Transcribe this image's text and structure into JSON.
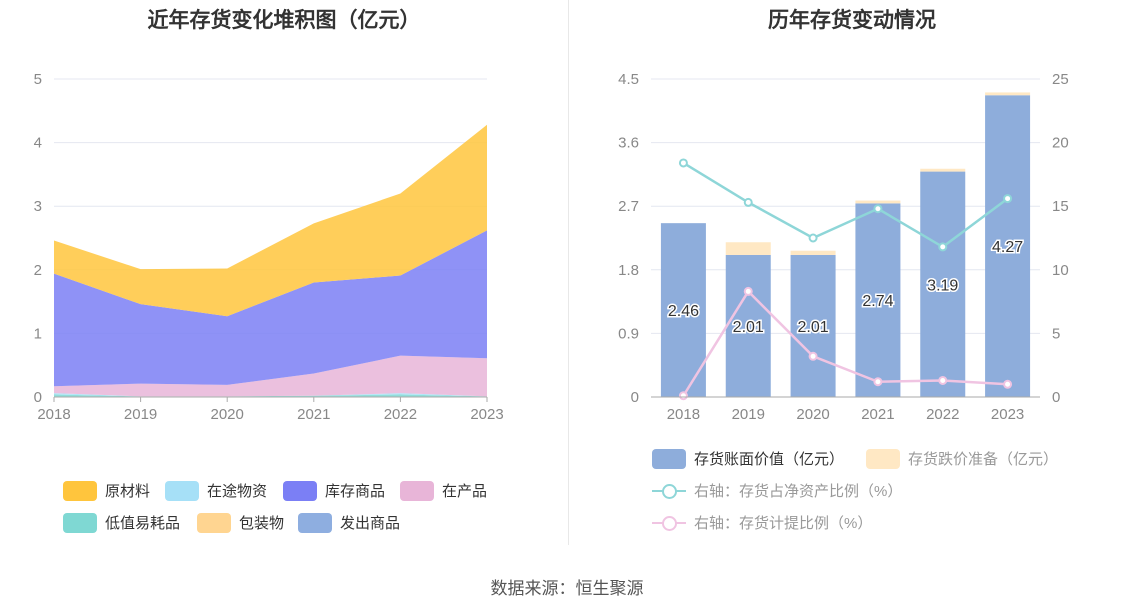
{
  "left": {
    "title": "近年存货变化堆积图（亿元）",
    "legend": [
      {
        "label": "原材料",
        "color": "#ffc53d"
      },
      {
        "label": "在途物资",
        "color": "#a6e0f7"
      },
      {
        "label": "库存商品",
        "color": "#7b7ff5"
      },
      {
        "label": "在产品",
        "color": "#e8b5d8"
      },
      {
        "label": "低值易耗品",
        "color": "#7fd8d3"
      },
      {
        "label": "包装物",
        "color": "#ffd591"
      },
      {
        "label": "发出商品",
        "color": "#8eaee0"
      }
    ]
  },
  "right": {
    "title": "历年存货变动情况",
    "legend": [
      {
        "label": "存货账面价值（亿元）",
        "color": "#8eaddb",
        "kind": "box",
        "muted": false
      },
      {
        "label": "存货跌价准备（亿元）",
        "color": "#ffe8c4",
        "kind": "box",
        "muted": true
      },
      {
        "label": "右轴：存货占净资产比例（%）",
        "color": "#8ed6d8",
        "kind": "line",
        "muted": true
      },
      {
        "label": "右轴：存货计提比例（%）",
        "color": "#f0c4e2",
        "kind": "line",
        "muted": true
      }
    ]
  },
  "source": "数据来源：恒生聚源",
  "chart_data": [
    {
      "type": "area",
      "stacked": true,
      "title": "近年存货变化堆积图（亿元）",
      "x": [
        "2018",
        "2019",
        "2020",
        "2021",
        "2022",
        "2023"
      ],
      "ylim": [
        0,
        5
      ],
      "yticks": [
        0,
        1,
        2,
        3,
        4,
        5
      ],
      "grid": true,
      "legend_position": "bottom",
      "series": [
        {
          "name": "低值易耗品",
          "color": "#7fd8d3",
          "values": [
            0.04,
            0.01,
            0.01,
            0.02,
            0.04,
            0.01
          ]
        },
        {
          "name": "在途物资",
          "color": "#a6e0f7",
          "values": [
            0.02,
            0.0,
            0.0,
            0.0,
            0.02,
            0.0
          ]
        },
        {
          "name": "在产品",
          "color": "#e8b5d8",
          "values": [
            0.11,
            0.2,
            0.18,
            0.35,
            0.59,
            0.6
          ]
        },
        {
          "name": "库存商品",
          "color": "#7b7ff5",
          "values": [
            1.77,
            1.25,
            1.08,
            1.43,
            1.26,
            2.01
          ]
        },
        {
          "name": "原材料",
          "color": "#ffc53d",
          "values": [
            0.52,
            0.55,
            0.75,
            0.93,
            1.29,
            1.66
          ]
        }
      ]
    },
    {
      "type": "bar",
      "stacked": true,
      "title": "历年存货变动情况",
      "categories": [
        "2018",
        "2019",
        "2020",
        "2021",
        "2022",
        "2023"
      ],
      "ylim": [
        0,
        4.5
      ],
      "yticks": [
        0,
        0.9,
        1.8,
        2.7,
        3.6,
        4.5
      ],
      "y2lim": [
        0,
        25
      ],
      "y2ticks": [
        0,
        5,
        10,
        15,
        20,
        25
      ],
      "grid": true,
      "legend_position": "bottom",
      "series": [
        {
          "name": "存货账面价值（亿元）",
          "type": "bar",
          "axis": "left",
          "color": "#8eaddb",
          "values": [
            2.46,
            2.01,
            2.01,
            2.74,
            3.19,
            4.27
          ],
          "labels": [
            "2.46",
            "2.01",
            "2.01",
            "2.74",
            "3.19",
            "4.27"
          ]
        },
        {
          "name": "存货跌价准备（亿元）",
          "type": "bar",
          "axis": "left",
          "color": "#ffe8c4",
          "values": [
            0.0,
            0.18,
            0.06,
            0.04,
            0.04,
            0.04
          ]
        },
        {
          "name": "右轴：存货占净资产比例（%）",
          "type": "line",
          "axis": "right",
          "color": "#8ed6d8",
          "values": [
            18.4,
            15.3,
            12.5,
            14.8,
            11.8,
            15.6
          ]
        },
        {
          "name": "右轴：存货计提比例（%）",
          "type": "line",
          "axis": "right",
          "color": "#f0c4e2",
          "values": [
            0.1,
            8.3,
            3.2,
            1.2,
            1.3,
            1.0
          ]
        }
      ]
    }
  ]
}
